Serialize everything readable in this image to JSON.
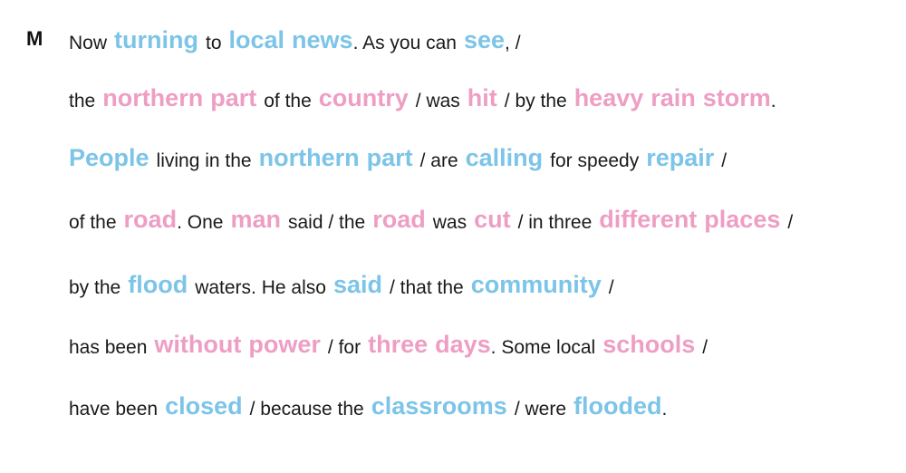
{
  "speaker": "M",
  "colors": {
    "stress_blue": "#7cc4e8",
    "stress_pink": "#ee9ec4",
    "normal": "#1a1a1a"
  },
  "lines": [
    [
      {
        "t": "Now",
        "c": "n"
      },
      {
        "t": "turning",
        "c": "blue"
      },
      {
        "t": "to",
        "c": "n"
      },
      {
        "t": "local",
        "c": "blue"
      },
      {
        "t": "news",
        "c": "blue"
      },
      {
        "t": ". As you can",
        "c": "n",
        "nosp": true
      },
      {
        "t": "see",
        "c": "blue"
      },
      {
        "t": ", /",
        "c": "n",
        "nosp": true
      }
    ],
    [
      {
        "t": "the",
        "c": "n"
      },
      {
        "t": "northern",
        "c": "pink"
      },
      {
        "t": "part",
        "c": "pink"
      },
      {
        "t": "of the",
        "c": "n"
      },
      {
        "t": "country",
        "c": "pink"
      },
      {
        "t": "/ was",
        "c": "n"
      },
      {
        "t": "hit",
        "c": "pink"
      },
      {
        "t": "/ by the",
        "c": "n"
      },
      {
        "t": "heavy",
        "c": "pink"
      },
      {
        "t": "rain",
        "c": "pink"
      },
      {
        "t": "storm",
        "c": "pink"
      },
      {
        "t": ".",
        "c": "n",
        "nosp": true
      }
    ],
    [
      {
        "t": "People",
        "c": "blue"
      },
      {
        "t": "living in the",
        "c": "n"
      },
      {
        "t": "northern",
        "c": "blue"
      },
      {
        "t": "part",
        "c": "blue"
      },
      {
        "t": "/ are",
        "c": "n"
      },
      {
        "t": "calling",
        "c": "blue"
      },
      {
        "t": "for speedy",
        "c": "n"
      },
      {
        "t": "repair",
        "c": "blue"
      },
      {
        "t": "/",
        "c": "n"
      }
    ],
    [
      {
        "t": "of the",
        "c": "n"
      },
      {
        "t": "road",
        "c": "pink"
      },
      {
        "t": ". One",
        "c": "n",
        "nosp": true
      },
      {
        "t": "man",
        "c": "pink"
      },
      {
        "t": "said / the",
        "c": "n"
      },
      {
        "t": "road",
        "c": "pink"
      },
      {
        "t": "was",
        "c": "n"
      },
      {
        "t": "cut",
        "c": "pink"
      },
      {
        "t": "/ in three",
        "c": "n"
      },
      {
        "t": "different",
        "c": "pink"
      },
      {
        "t": "places",
        "c": "pink"
      },
      {
        "t": "/",
        "c": "n"
      }
    ],
    [
      {
        "t": "by the",
        "c": "n"
      },
      {
        "t": "flood",
        "c": "blue"
      },
      {
        "t": "waters. He also",
        "c": "n"
      },
      {
        "t": "said",
        "c": "blue"
      },
      {
        "t": "/ that the",
        "c": "n"
      },
      {
        "t": "community",
        "c": "blue"
      },
      {
        "t": "/",
        "c": "n"
      }
    ],
    [
      {
        "t": "has been",
        "c": "n"
      },
      {
        "t": "without",
        "c": "pink"
      },
      {
        "t": "power",
        "c": "pink"
      },
      {
        "t": "/ for",
        "c": "n"
      },
      {
        "t": "three",
        "c": "pink"
      },
      {
        "t": "days",
        "c": "pink"
      },
      {
        "t": ". Some local",
        "c": "n",
        "nosp": true
      },
      {
        "t": "schools",
        "c": "pink"
      },
      {
        "t": "/",
        "c": "n"
      }
    ],
    [
      {
        "t": "have been",
        "c": "n"
      },
      {
        "t": "closed",
        "c": "blue"
      },
      {
        "t": "/ because the",
        "c": "n"
      },
      {
        "t": "classrooms",
        "c": "blue"
      },
      {
        "t": "/ were",
        "c": "n"
      },
      {
        "t": "flooded",
        "c": "blue"
      },
      {
        "t": ".",
        "c": "n",
        "nosp": true
      }
    ]
  ]
}
